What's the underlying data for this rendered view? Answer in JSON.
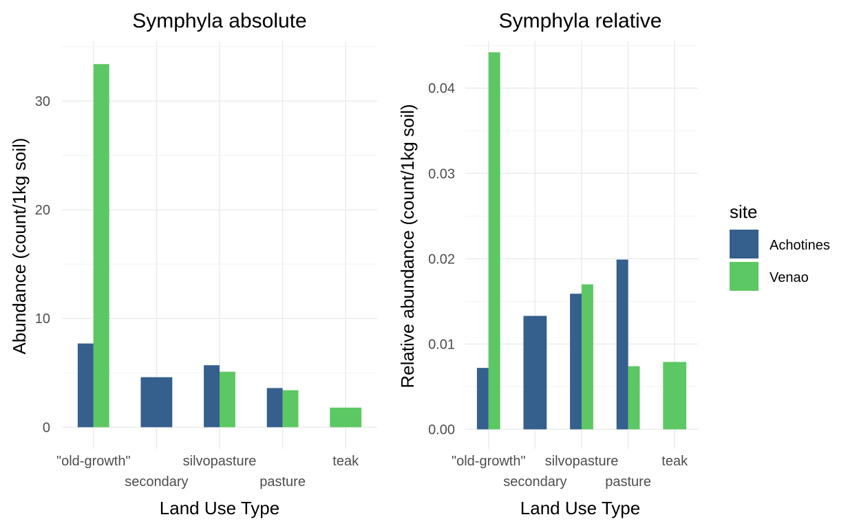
{
  "legend": {
    "title": "site",
    "items": [
      {
        "label": "Achotines",
        "color": "#355F8D"
      },
      {
        "label": "Venao",
        "color": "#5CC863"
      }
    ]
  },
  "chart_data": [
    {
      "type": "bar",
      "title": "Symphyla absolute",
      "xlabel": "Land Use Type",
      "ylabel": "Abundance (count/1kg soil)",
      "categories": [
        "\"old-growth\"",
        "secondary",
        "silvopasture",
        "pasture",
        "teak"
      ],
      "tick_labels_y": [
        "0",
        "10",
        "20",
        "30"
      ],
      "ylim": [
        -2,
        35.5
      ],
      "yticks": [
        0,
        10,
        20,
        30
      ],
      "series": [
        {
          "name": "Achotines",
          "color": "#355F8D",
          "values": [
            7.7,
            4.6,
            5.7,
            3.6,
            null
          ]
        },
        {
          "name": "Venao",
          "color": "#5CC863",
          "values": [
            33.4,
            null,
            5.1,
            3.4,
            1.8
          ]
        }
      ],
      "grid": true,
      "legend_position": "right"
    },
    {
      "type": "bar",
      "title": "Symphyla relative",
      "xlabel": "Land Use Type",
      "ylabel": "Relative abundance (count/1kg soil)",
      "categories": [
        "\"old-growth\"",
        "secondary",
        "silvopasture",
        "pasture",
        "teak"
      ],
      "tick_labels_y": [
        "0.00",
        "0.01",
        "0.02",
        "0.03",
        "0.04"
      ],
      "ylim": [
        -0.0023,
        0.0455
      ],
      "yticks": [
        0,
        0.01,
        0.02,
        0.03,
        0.04
      ],
      "series": [
        {
          "name": "Achotines",
          "color": "#355F8D",
          "values": [
            0.0072,
            0.0133,
            0.0159,
            0.0199,
            null
          ]
        },
        {
          "name": "Venao",
          "color": "#5CC863",
          "values": [
            0.0442,
            null,
            0.017,
            0.0074,
            0.0079
          ]
        }
      ],
      "grid": true,
      "legend_position": "right"
    }
  ]
}
